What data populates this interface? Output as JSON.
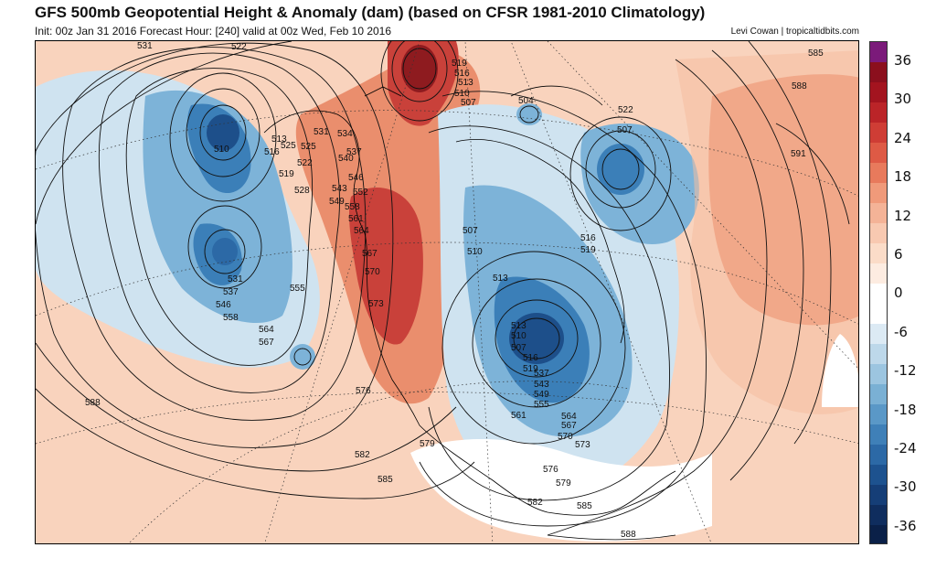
{
  "header": {
    "title": "GFS 500mb Geopotential Height & Anomaly (dam) (based on CFSR 1981-2010 Climatology)",
    "subtitle": "Init: 00z Jan 31 2016   Forecast Hour: [240]   valid at 00z Wed, Feb 10 2016",
    "credit": "Levi Cowan | tropicaltidbits.com"
  },
  "colorbar": {
    "labels": [
      "36",
      "30",
      "24",
      "18",
      "12",
      "6",
      "0",
      "-6",
      "-12",
      "-18",
      "-24",
      "-30",
      "-36"
    ],
    "colors": [
      "#7b1a7a",
      "#8b0f1d",
      "#a3141f",
      "#bb2428",
      "#cf3d35",
      "#de5a45",
      "#e87a5c",
      "#f09a7a",
      "#f4b397",
      "#f8c9b1",
      "#fbdcc8",
      "#fdece1",
      "#ffffff",
      "#ffffff",
      "#dceaf4",
      "#bdd8ea",
      "#9cc5e0",
      "#7ab0d4",
      "#5a98c7",
      "#3f80b8",
      "#2c69a6",
      "#1d528f",
      "#153e77",
      "#0f2d5e",
      "#0a2048"
    ]
  },
  "map": {
    "colors": {
      "background": "#f9d3bd",
      "warm_light": "#f6bda1",
      "warm_mid": "#ea8e6d",
      "warm_dark": "#c9413a",
      "warm_max": "#8e1b1f",
      "cold_light": "#cfe3f0",
      "cold_mid": "#7db3d8",
      "cold_dark": "#3b7fb8",
      "cold_max": "#1d4f8a",
      "neutral": "#ffffff"
    },
    "contour_labels": [
      {
        "text": "531"
      },
      {
        "text": "522"
      },
      {
        "text": "525"
      },
      {
        "text": "519"
      },
      {
        "text": "516"
      },
      {
        "text": "513"
      },
      {
        "text": "510"
      },
      {
        "text": "507"
      },
      {
        "text": "504"
      },
      {
        "text": "522"
      },
      {
        "text": "507"
      },
      {
        "text": "585"
      },
      {
        "text": "588"
      },
      {
        "text": "591"
      },
      {
        "text": "510"
      },
      {
        "text": "516"
      },
      {
        "text": "513"
      },
      {
        "text": "525"
      },
      {
        "text": "519"
      },
      {
        "text": "522"
      },
      {
        "text": "528"
      },
      {
        "text": "531"
      },
      {
        "text": "534"
      },
      {
        "text": "537"
      },
      {
        "text": "540"
      },
      {
        "text": "543"
      },
      {
        "text": "546"
      },
      {
        "text": "549"
      },
      {
        "text": "552"
      },
      {
        "text": "558"
      },
      {
        "text": "561"
      },
      {
        "text": "564"
      },
      {
        "text": "567"
      },
      {
        "text": "570"
      },
      {
        "text": "573"
      },
      {
        "text": "555"
      },
      {
        "text": "531"
      },
      {
        "text": "537"
      },
      {
        "text": "546"
      },
      {
        "text": "558"
      },
      {
        "text": "564"
      },
      {
        "text": "567"
      },
      {
        "text": "507"
      },
      {
        "text": "510"
      },
      {
        "text": "513"
      },
      {
        "text": "516"
      },
      {
        "text": "519"
      },
      {
        "text": "576"
      },
      {
        "text": "582"
      },
      {
        "text": "585"
      },
      {
        "text": "588"
      },
      {
        "text": "579"
      },
      {
        "text": "561"
      },
      {
        "text": "564"
      },
      {
        "text": "567"
      },
      {
        "text": "570"
      },
      {
        "text": "573"
      },
      {
        "text": "576"
      },
      {
        "text": "579"
      },
      {
        "text": "582"
      },
      {
        "text": "585"
      },
      {
        "text": "588"
      },
      {
        "text": "555"
      },
      {
        "text": "549"
      },
      {
        "text": "543"
      },
      {
        "text": "537"
      },
      {
        "text": "519"
      },
      {
        "text": "516"
      },
      {
        "text": "507"
      },
      {
        "text": "510"
      },
      {
        "text": "513"
      }
    ]
  }
}
